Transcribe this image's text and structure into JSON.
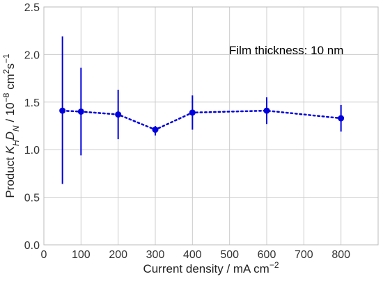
{
  "chart_data": {
    "type": "scatter",
    "x": [
      50,
      100,
      200,
      300,
      400,
      600,
      800
    ],
    "y": [
      1.41,
      1.4,
      1.37,
      1.21,
      1.39,
      1.41,
      1.33
    ],
    "y_err_low": [
      0.77,
      0.46,
      0.26,
      0.06,
      0.18,
      0.14,
      0.14
    ],
    "y_err_high": [
      0.78,
      0.46,
      0.26,
      0.04,
      0.18,
      0.14,
      0.14
    ],
    "xlabel": "Current density / mA cm",
    "xlabel_sup": "−2",
    "ylabel_parts": {
      "prefix": "Product ",
      "k": "K",
      "k_sub": "H",
      "d": "D",
      "d_sub": "N",
      "mid": " / 10",
      "exp": "−8",
      "unit": " cm",
      "unit_exp1": "2",
      "unit_s": "s",
      "unit_exp2": "−1"
    },
    "annotation": "Film thickness: 10 nm",
    "xlim": [
      0,
      900
    ],
    "ylim": [
      0,
      2.5
    ],
    "xticks": [
      0,
      100,
      200,
      300,
      400,
      500,
      600,
      700,
      800
    ],
    "yticks": [
      0.0,
      0.5,
      1.0,
      1.5,
      2.0,
      2.5
    ],
    "xtick_labels": [
      "0",
      "100",
      "200",
      "300",
      "400",
      "500",
      "600",
      "700",
      "800"
    ],
    "ytick_labels": [
      "0.0",
      "0.5",
      "1.0",
      "1.5",
      "2.0",
      "2.5"
    ],
    "grid": true,
    "series_color": "#0000dd",
    "line_style": "dotted",
    "grid_color": "#cccccc"
  }
}
